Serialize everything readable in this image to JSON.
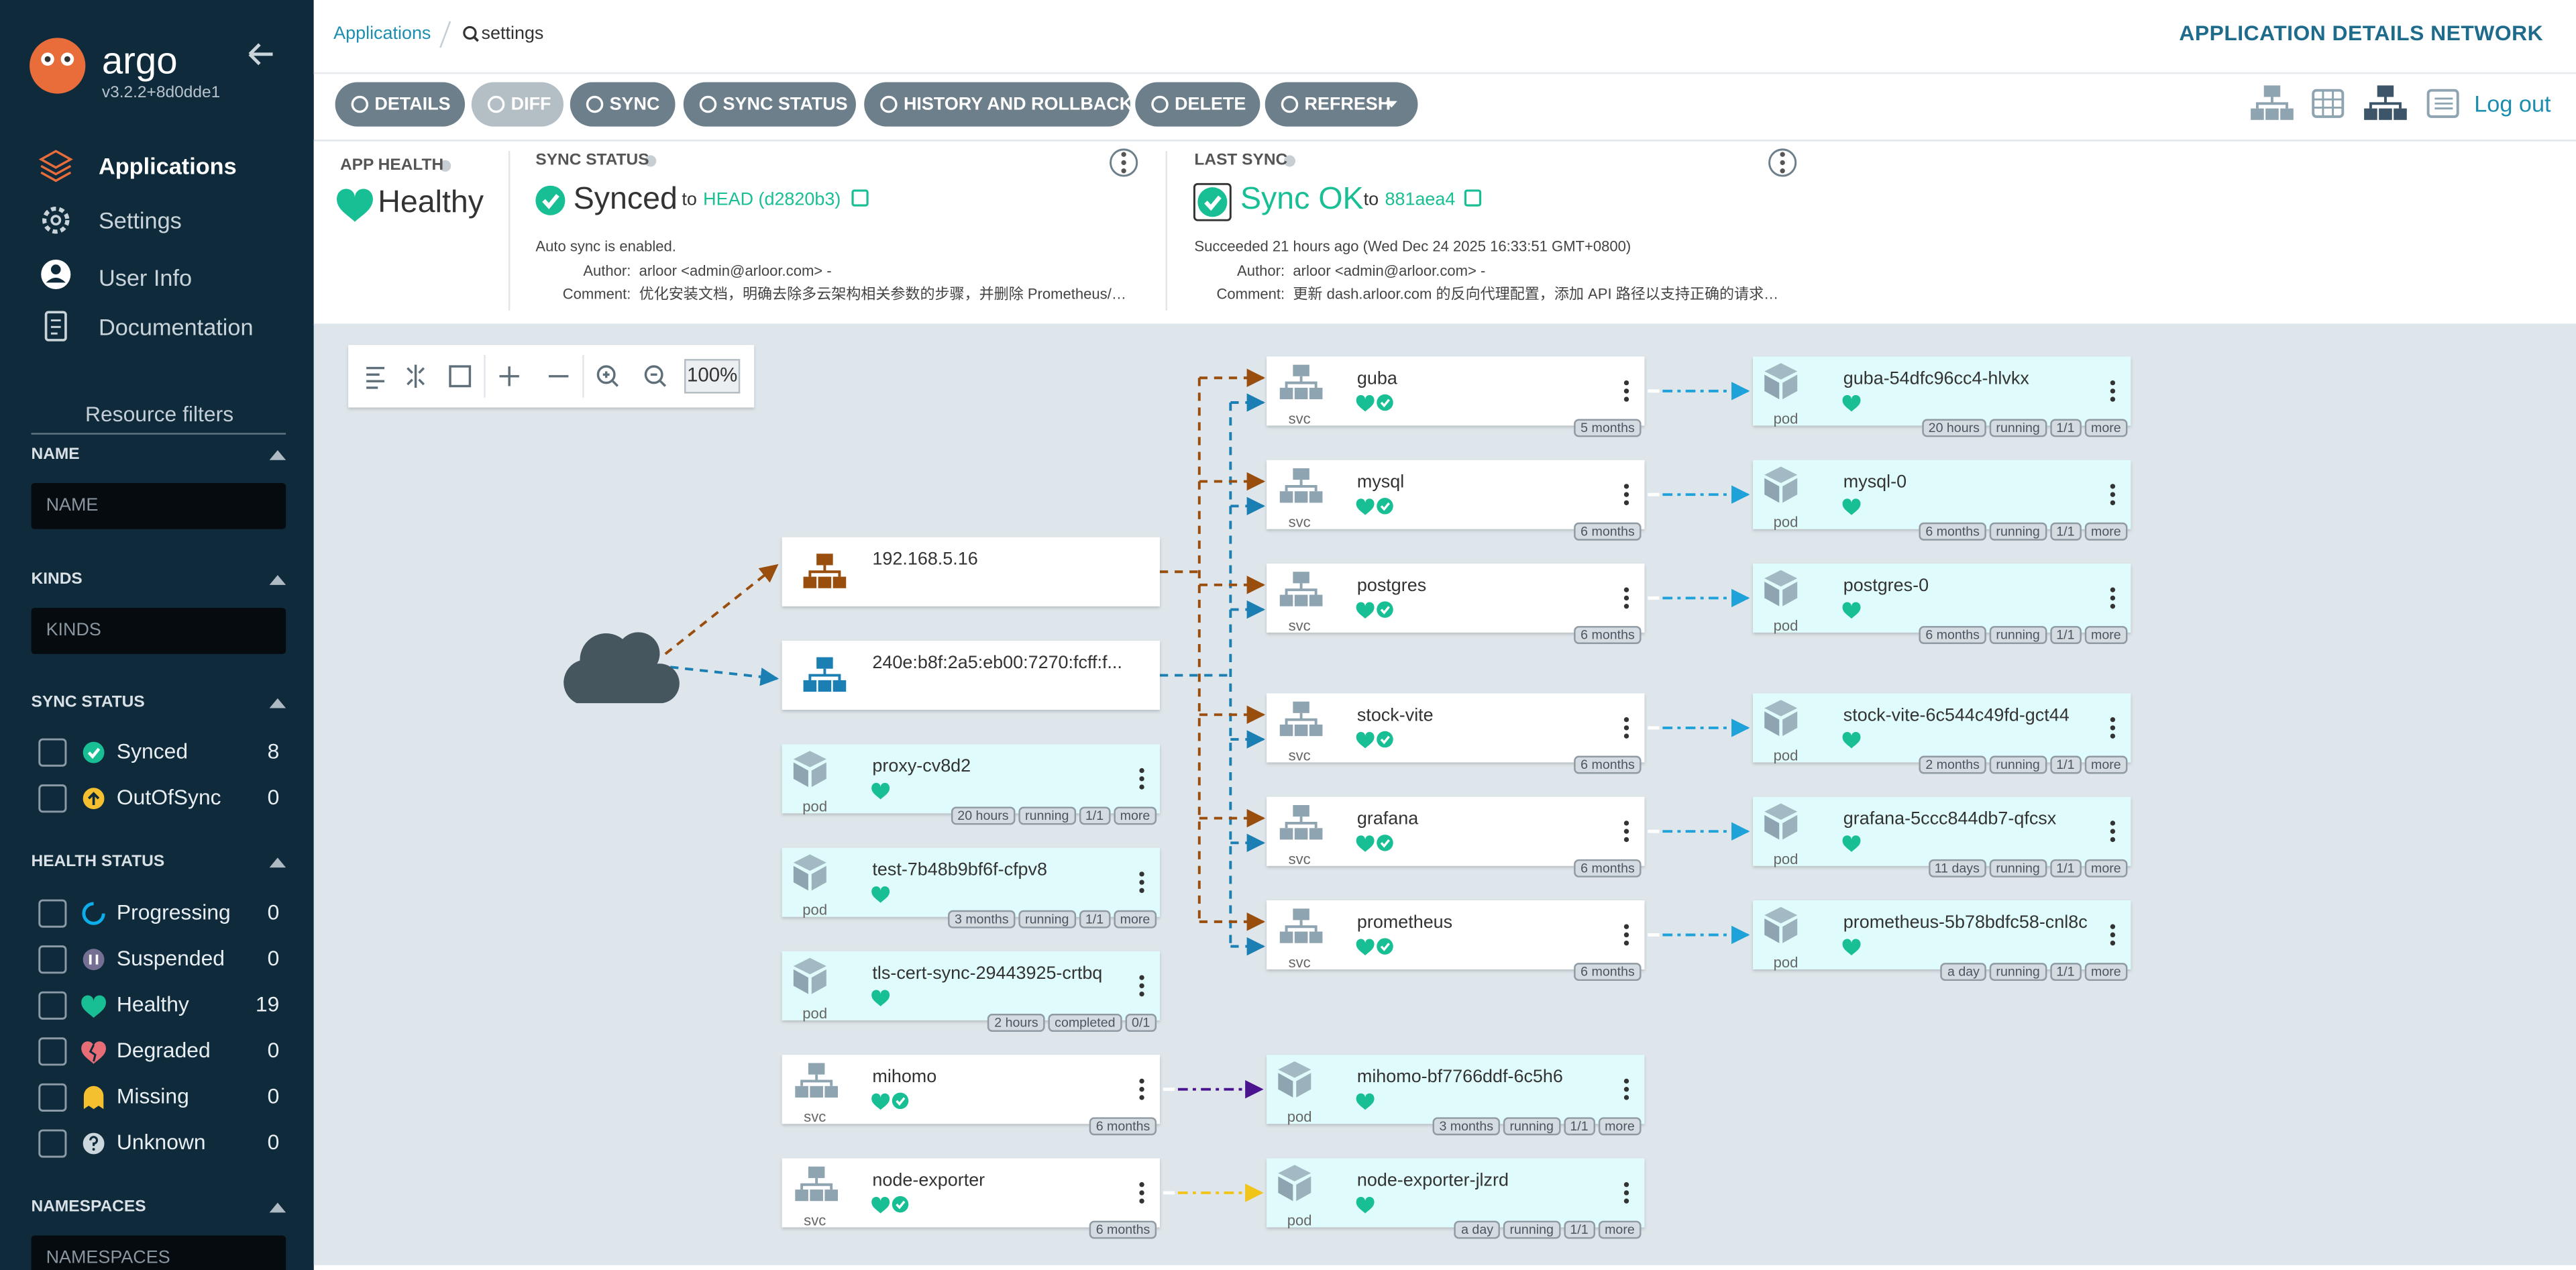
{
  "sidebar": {
    "logo": "argo",
    "version": "v3.2.2+8d0dde1",
    "nav": [
      "Applications",
      "Settings",
      "User Info",
      "Documentation"
    ],
    "filters_title": "Resource filters",
    "filters": [
      {
        "title": "NAME",
        "placeholder": "NAME"
      },
      {
        "title": "KINDS",
        "placeholder": "KINDS"
      }
    ],
    "sync_status": {
      "title": "SYNC STATUS",
      "items": [
        {
          "label": "Synced",
          "count": 8
        },
        {
          "label": "OutOfSync",
          "count": 0
        }
      ]
    },
    "health_status": {
      "title": "HEALTH STATUS",
      "items": [
        {
          "label": "Progressing",
          "count": 0
        },
        {
          "label": "Suspended",
          "count": 0
        },
        {
          "label": "Healthy",
          "count": 19
        },
        {
          "label": "Degraded",
          "count": 0
        },
        {
          "label": "Missing",
          "count": 0
        },
        {
          "label": "Unknown",
          "count": 0
        }
      ]
    },
    "namespaces": {
      "title": "NAMESPACES",
      "placeholder": "NAMESPACES"
    }
  },
  "header": {
    "breadcrumb": [
      "Applications",
      "settings"
    ],
    "title": "APPLICATION DETAILS NETWORK",
    "buttons": [
      "DETAILS",
      "DIFF",
      "SYNC",
      "SYNC STATUS",
      "HISTORY AND ROLLBACK",
      "DELETE",
      "REFRESH"
    ],
    "logout": "Log out"
  },
  "status": {
    "app_health": {
      "title": "APP HEALTH",
      "value": "Healthy"
    },
    "sync_status": {
      "title": "SYNC STATUS",
      "value": "Synced",
      "to": "to",
      "revision": "HEAD (d2820b3)",
      "note": "Auto sync is enabled.",
      "author_label": "Author:",
      "author": "arloor <admin@arloor.com> -",
      "comment_label": "Comment:",
      "comment": "优化安装文档，明确去除多云架构相关参数的步骤，并删除 Prometheus/…"
    },
    "last_sync": {
      "title": "LAST SYNC",
      "value": "Sync OK",
      "to": "to",
      "revision": "881aea4",
      "note": "Succeeded 21 hours ago (Wed Dec 24 2025 16:33:51 GMT+0800)",
      "author_label": "Author:",
      "author": "arloor <admin@arloor.com> -",
      "comment_label": "Comment:",
      "comment": "更新 dash.arloor.com 的反向代理配置，添加 API 路径以支持正确的请求…"
    }
  },
  "graph": {
    "zoom": "100%",
    "nodes": [
      {
        "label": "192.168.5.16"
      },
      {
        "label": "240e:b8f:2a5:eb00:7270:fcff:f..."
      },
      {
        "label": "proxy-cv8d2",
        "kind": "pod",
        "tags": [
          "20 hours",
          "running",
          "1/1",
          "more"
        ]
      },
      {
        "label": "test-7b48b9bf6f-cfpv8",
        "kind": "pod",
        "tags": [
          "3 months",
          "running",
          "1/1",
          "more"
        ]
      },
      {
        "label": "tls-cert-sync-29443925-crtbq",
        "kind": "pod",
        "tags": [
          "2 hours",
          "completed",
          "0/1"
        ]
      },
      {
        "label": "mihomo",
        "kind": "svc",
        "tags": [
          "6 months"
        ]
      },
      {
        "label": "node-exporter",
        "kind": "svc",
        "tags": [
          "6 months"
        ]
      },
      {
        "label": "guba",
        "kind": "svc",
        "tags": [
          "5 months"
        ]
      },
      {
        "label": "mysql",
        "kind": "svc",
        "tags": [
          "6 months"
        ]
      },
      {
        "label": "postgres",
        "kind": "svc",
        "tags": [
          "6 months"
        ]
      },
      {
        "label": "stock-vite",
        "kind": "svc",
        "tags": [
          "6 months"
        ]
      },
      {
        "label": "grafana",
        "kind": "svc",
        "tags": [
          "6 months"
        ]
      },
      {
        "label": "prometheus",
        "kind": "svc",
        "tags": [
          "6 months"
        ]
      },
      {
        "label": "mihomo-bf7766ddf-6c5h6",
        "kind": "pod",
        "tags": [
          "3 months",
          "running",
          "1/1",
          "more"
        ]
      },
      {
        "label": "node-exporter-jlzrd",
        "kind": "pod",
        "tags": [
          "a day",
          "running",
          "1/1",
          "more"
        ]
      },
      {
        "label": "guba-54dfc96cc4-hlvkx",
        "kind": "pod",
        "tags": [
          "20 hours",
          "running",
          "1/1",
          "more"
        ]
      },
      {
        "label": "mysql-0",
        "kind": "pod",
        "tags": [
          "6 months",
          "running",
          "1/1",
          "more"
        ]
      },
      {
        "label": "postgres-0",
        "kind": "pod",
        "tags": [
          "6 months",
          "running",
          "1/1",
          "more"
        ]
      },
      {
        "label": "stock-vite-6c544c49fd-gct44",
        "kind": "pod",
        "tags": [
          "2 months",
          "running",
          "1/1",
          "more"
        ]
      },
      {
        "label": "grafana-5ccc844db7-qfcsx",
        "kind": "pod",
        "tags": [
          "11 days",
          "running",
          "1/1",
          "more"
        ]
      },
      {
        "label": "prometheus-5b78bdfc58-cnl8c",
        "kind": "pod",
        "tags": [
          "a day",
          "running",
          "1/1",
          "more"
        ]
      }
    ]
  }
}
